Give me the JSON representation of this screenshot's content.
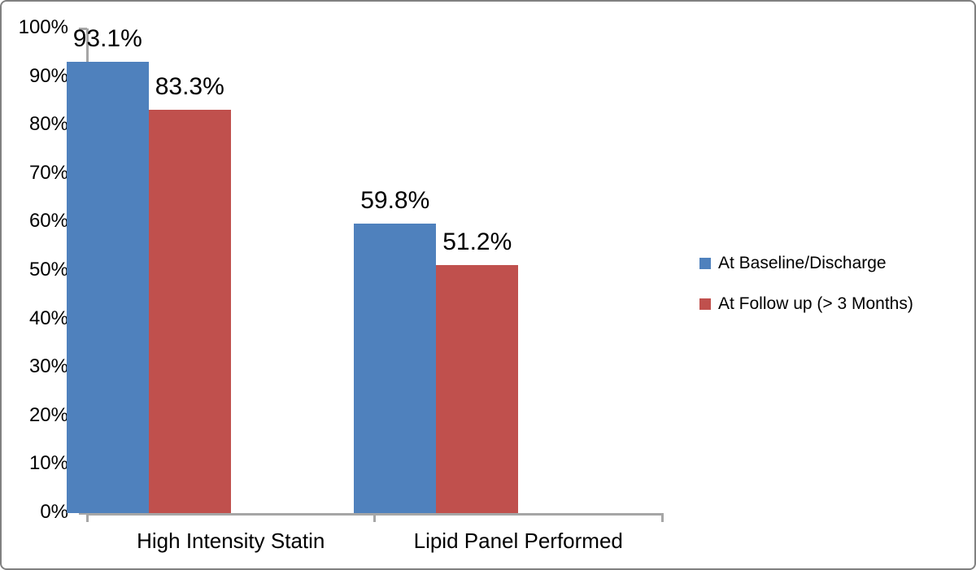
{
  "figure": {
    "background_color": "#FFFFFF",
    "border_color": "#808080",
    "axis_color": "#A6A6A6",
    "text_color": "#000000"
  },
  "chart_data": {
    "type": "bar",
    "title": "",
    "xlabel": "",
    "ylabel": "",
    "categories": [
      "High Intensity Statin",
      "Lipid Panel Performed"
    ],
    "series": [
      {
        "name": "At Baseline/Discharge",
        "color": "#4F81BD",
        "values": [
          93.1,
          59.8
        ],
        "value_labels": [
          "93.1%",
          "59.8%"
        ]
      },
      {
        "name": "At Follow up (> 3 Months)",
        "color": "#C0504D",
        "values": [
          83.3,
          51.2
        ],
        "value_labels": [
          "83.3%",
          "51.2%"
        ]
      }
    ],
    "ylim": [
      0,
      100
    ],
    "ytick_step": 10,
    "ytick_labels": [
      "0%",
      "10%",
      "20%",
      "30%",
      "40%",
      "50%",
      "60%",
      "70%",
      "80%",
      "90%",
      "100%"
    ],
    "grid": false,
    "legend_position": "right"
  }
}
